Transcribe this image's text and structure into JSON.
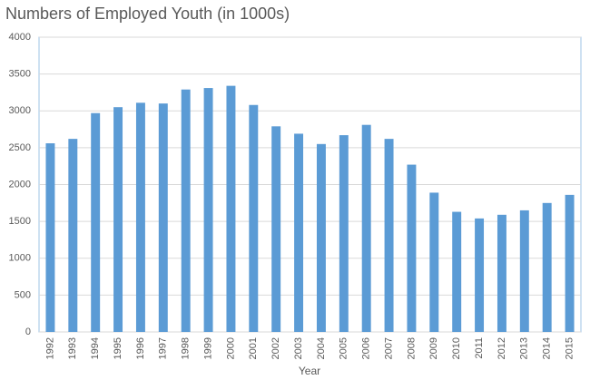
{
  "chart_data": {
    "type": "bar",
    "title": "Numbers of Employed Youth (in 1000s)",
    "x_label": "Year",
    "categories": [
      "1992",
      "1993",
      "1994",
      "1995",
      "1996",
      "1997",
      "1998",
      "1999",
      "2000",
      "2001",
      "2002",
      "2003",
      "2004",
      "2005",
      "2006",
      "2007",
      "2008",
      "2009",
      "2010",
      "2011",
      "2012",
      "2013",
      "2014",
      "2015"
    ],
    "values": [
      2560,
      2620,
      2970,
      3050,
      3110,
      3100,
      3290,
      3310,
      3340,
      3080,
      2790,
      2690,
      2550,
      2670,
      2810,
      2620,
      2270,
      1890,
      1630,
      1540,
      1590,
      1650,
      1750,
      1860
    ],
    "color": "#5b9bd5",
    "ylim": [
      0,
      4000
    ],
    "yticks": [
      0,
      500,
      1000,
      1500,
      2000,
      2500,
      3000,
      3500,
      4000
    ],
    "grid": true
  }
}
